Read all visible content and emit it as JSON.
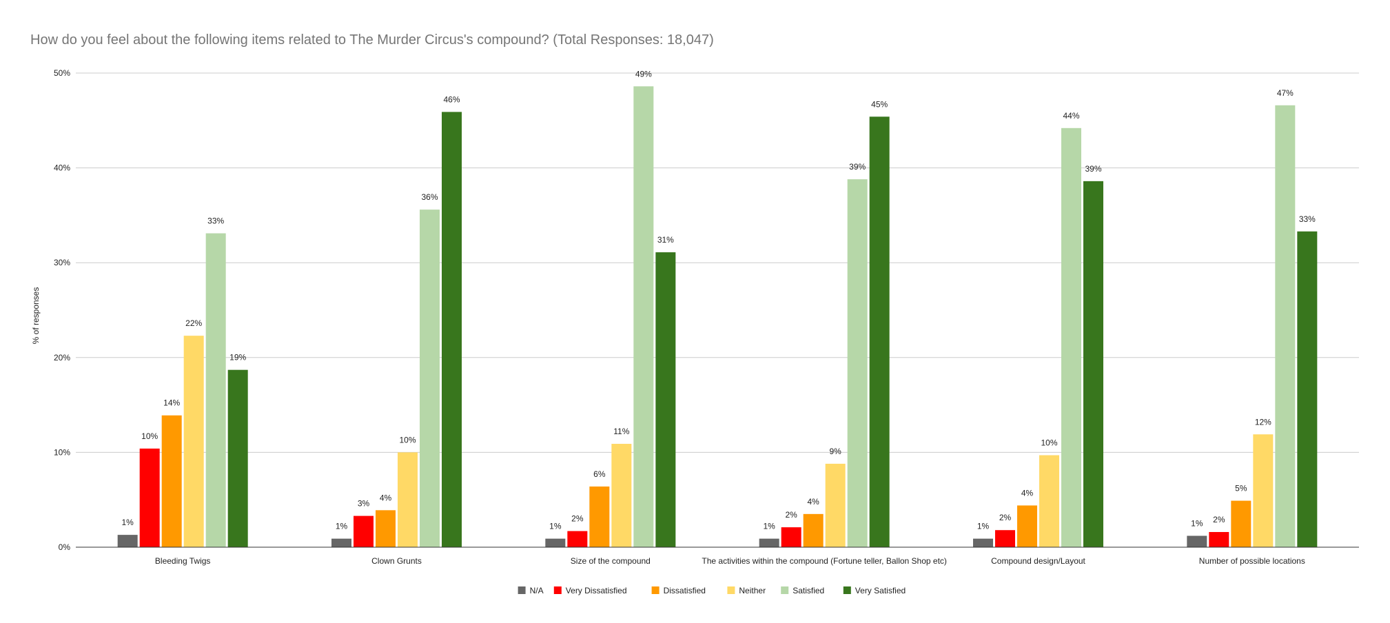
{
  "chart_data": {
    "type": "bar",
    "title": "How do you feel about the following items related to The Murder Circus's compound? (Total Responses: 18,047)",
    "xlabel": "",
    "ylabel": "% of responses",
    "ylim": [
      0,
      50
    ],
    "y_ticks": [
      "0%",
      "10%",
      "20%",
      "30%",
      "40%",
      "50%"
    ],
    "grid": true,
    "legend_position": "bottom",
    "categories": [
      "Bleeding Twigs",
      "Clown Grunts",
      "Size of the compound",
      "The activities within the compound (Fortune teller, Ballon Shop etc)",
      "Compound design/Layout",
      "Number of possible locations"
    ],
    "series": [
      {
        "name": "N/A",
        "color": "#666666",
        "values": [
          1.3,
          0.9,
          0.9,
          0.9,
          0.9,
          1.2
        ],
        "labels": [
          "1%",
          "1%",
          "1%",
          "1%",
          "1%",
          "1%"
        ]
      },
      {
        "name": "Very Dissatisfied",
        "color": "#ff0000",
        "values": [
          10.4,
          3.3,
          1.7,
          2.1,
          1.8,
          1.6
        ],
        "labels": [
          "10%",
          "3%",
          "2%",
          "2%",
          "2%",
          "2%"
        ]
      },
      {
        "name": "Dissatisfied",
        "color": "#ff9900",
        "values": [
          13.9,
          3.9,
          6.4,
          3.5,
          4.4,
          4.9
        ],
        "labels": [
          "14%",
          "4%",
          "6%",
          "4%",
          "4%",
          "5%"
        ]
      },
      {
        "name": "Neither",
        "color": "#ffd966",
        "values": [
          22.3,
          10.0,
          10.9,
          8.8,
          9.7,
          11.9
        ],
        "labels": [
          "22%",
          "10%",
          "11%",
          "9%",
          "10%",
          "12%"
        ]
      },
      {
        "name": "Satisfied",
        "color": "#b6d7a8",
        "values": [
          33.1,
          35.6,
          48.6,
          38.8,
          44.2,
          46.6
        ],
        "labels": [
          "33%",
          "36%",
          "49%",
          "39%",
          "44%",
          "47%"
        ]
      },
      {
        "name": "Very Satisfied",
        "color": "#38761d",
        "values": [
          18.7,
          45.9,
          31.1,
          45.4,
          38.6,
          33.3
        ],
        "labels": [
          "19%",
          "46%",
          "31%",
          "45%",
          "39%",
          "33%"
        ]
      }
    ]
  }
}
